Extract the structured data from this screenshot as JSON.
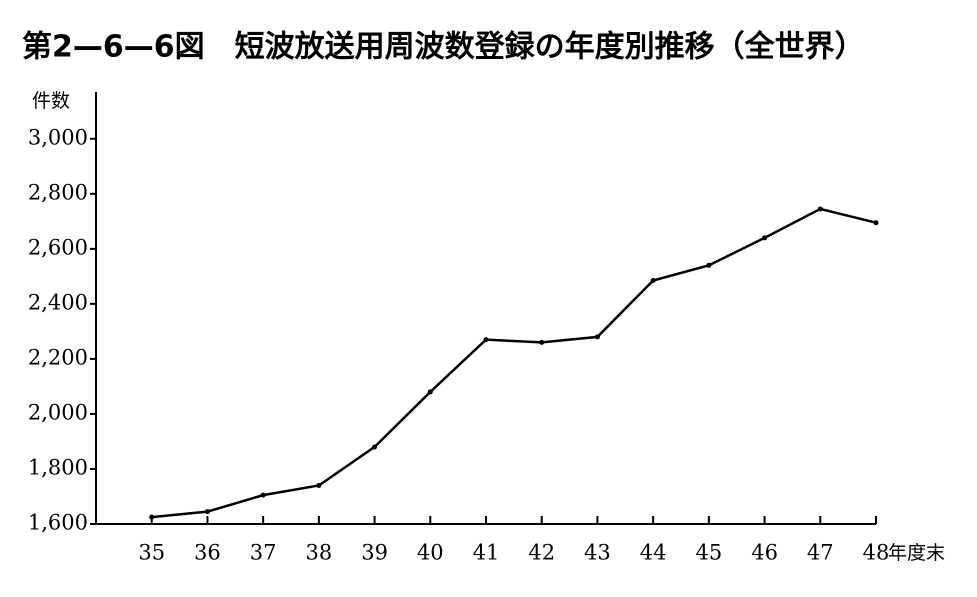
{
  "chart_data": {
    "type": "line",
    "title": "第2—6—6図　短波放送用周波数登録の年度別推移（全世界）",
    "y_label": "件数",
    "x_label": "年度末",
    "categories": [
      "35",
      "36",
      "37",
      "38",
      "39",
      "40",
      "41",
      "42",
      "43",
      "44",
      "45",
      "46",
      "47",
      "48"
    ],
    "series": [
      {
        "name": "短波放送用周波数登録",
        "color": "#000000",
        "values": [
          1625,
          1645,
          1705,
          1740,
          1880,
          2080,
          2270,
          2260,
          2280,
          2485,
          2540,
          2640,
          2745,
          2695
        ]
      }
    ],
    "ylim": [
      1600,
      3170
    ],
    "yticks": [
      {
        "value": 1600,
        "label": "1,600"
      },
      {
        "value": 1800,
        "label": "1,800"
      },
      {
        "value": 2000,
        "label": "2,000"
      },
      {
        "value": 2200,
        "label": "2,200"
      },
      {
        "value": 2400,
        "label": "2,400"
      },
      {
        "value": 2600,
        "label": "2,600"
      },
      {
        "value": 2800,
        "label": "2,800"
      },
      {
        "value": 3000,
        "label": "3,000"
      }
    ]
  }
}
